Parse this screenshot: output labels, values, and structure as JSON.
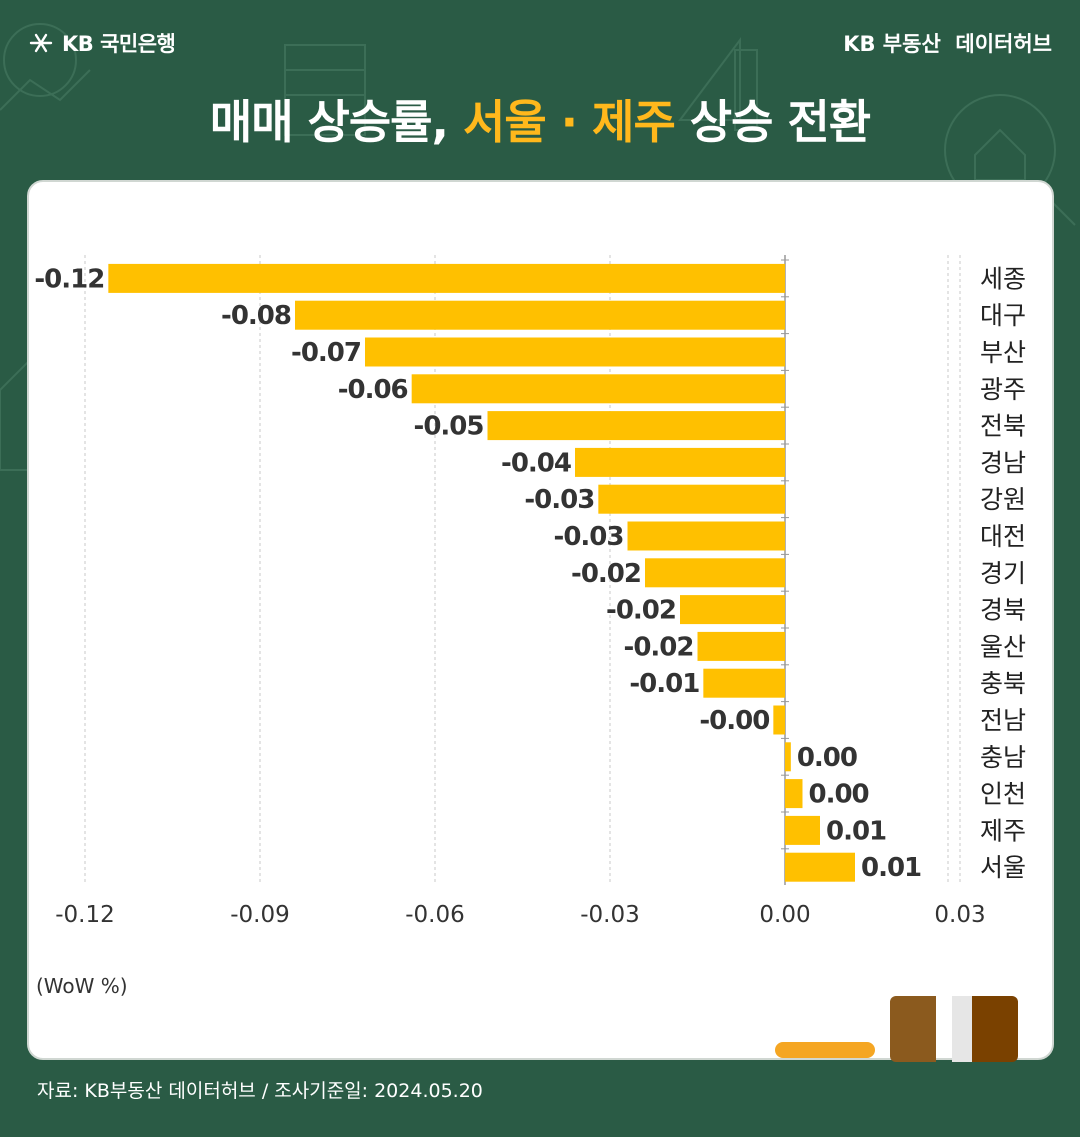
{
  "header": {
    "bank_logo_text": "KB 국민은행",
    "hub_label": "KB 부동산  데이터허브"
  },
  "title": {
    "part1": "매매 상승률, ",
    "highlight1": "서울",
    "separator": " · ",
    "highlight2": "제주",
    "part2": " 상승 전환"
  },
  "unit_label": "(WoW %)",
  "footer": "자료: KB부동산 데이터허브 / 조사기준일: 2024.05.20",
  "colors": {
    "background": "#2a5b45",
    "bar": "#ffc000",
    "highlight": "#ffb81c"
  },
  "chart_data": {
    "type": "bar",
    "orientation": "horizontal",
    "categories": [
      "세종",
      "대구",
      "부산",
      "광주",
      "전북",
      "경남",
      "강원",
      "대전",
      "경기",
      "경북",
      "울산",
      "충북",
      "전남",
      "충남",
      "인천",
      "제주",
      "서울"
    ],
    "values": [
      -0.116,
      -0.084,
      -0.072,
      -0.064,
      -0.051,
      -0.036,
      -0.032,
      -0.027,
      -0.024,
      -0.018,
      -0.015,
      -0.014,
      -0.002,
      0.001,
      0.003,
      0.006,
      0.012
    ],
    "value_labels": [
      "-0.12",
      "-0.08",
      "-0.07",
      "-0.06",
      "-0.05",
      "-0.04",
      "-0.03",
      "-0.03",
      "-0.02",
      "-0.02",
      "-0.02",
      "-0.01",
      "-0.00",
      "0.00",
      "0.00",
      "0.01",
      "0.01"
    ],
    "xlim": [
      -0.12,
      0.03
    ],
    "xticks": [
      -0.12,
      -0.09,
      -0.06,
      -0.03,
      0.0,
      0.03
    ],
    "xtick_labels": [
      "-0.12",
      "-0.09",
      "-0.06",
      "-0.03",
      "0.00",
      "0.03"
    ],
    "grid": "vertical-dashed",
    "category_axis": "right"
  }
}
